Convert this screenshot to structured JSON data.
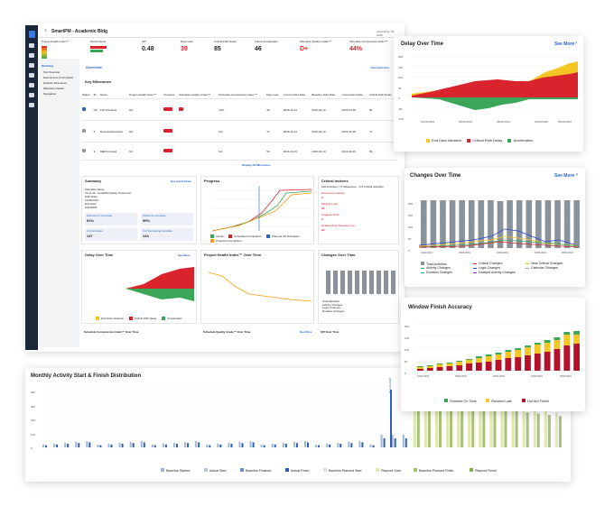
{
  "app": {
    "title": "SmartPM - Academic Bldg",
    "user": "Somebody, Sb 1026",
    "metrics": [
      {
        "label": "Project Health Index™",
        "value": ""
      },
      {
        "label": "Performance",
        "value": ""
      },
      {
        "label": "SPI",
        "value": "0.48"
      },
      {
        "label": "Days Late",
        "value": "39"
      },
      {
        "label": "Critical Path Delay",
        "value": "85"
      },
      {
        "label": "Future Acceleration",
        "value": "46"
      },
      {
        "label": "Schedule Quality Grade™",
        "value": "D+"
      },
      {
        "label": "Schedule Compression Index™",
        "value": "44%"
      }
    ],
    "sidebar_menu": [
      "Modeling",
      "Test Scenario",
      "Experiments & Complete",
      "Network Resources",
      "Milestone Details",
      "Navigation"
    ],
    "overview_link": "Overview",
    "view_summary": "View Summary",
    "key_milestones": {
      "title": "Key Milestones",
      "columns": [
        "Status",
        "ID",
        "Name",
        "Project Health Index™",
        "Progress",
        "Schedule Quality Grade™",
        "Schedule Compression Index™",
        "Days Late",
        "Current Start Date",
        "Baseline Start Date",
        "Current End Date",
        "Critical Path Delay",
        "Future Acceleration"
      ],
      "rows": [
        {
          "id": "NA",
          "name": "Full Schedule",
          "phi": "NA",
          "sci": "44%",
          "days": "39",
          "cur_start": "2016-11-03",
          "base_start": "2016-02-10",
          "cur_end": "2016-04-26",
          "cpd": "85"
        },
        {
          "id": "5",
          "name": "Roundo Relocated",
          "phi": "NA",
          "sci": "NA",
          "days": "71",
          "cur_start": "2016-11-03",
          "base_start": "2016-02-10",
          "cur_end": "2016-02-26",
          "cpd": "71"
        },
        {
          "id": "9",
          "name": "MEN's issued",
          "phi": "NA",
          "sci": "NA",
          "days": "59",
          "cur_start": "2016-11-03",
          "base_start": "2016-02-10",
          "cur_end": "2016-02-26",
          "cpd": "59"
        }
      ],
      "display_all": "Display All Milestones"
    },
    "summary_panel": {
      "title": "Summary",
      "link": "See Gantt Chart",
      "rows": [
        {
          "label": "Schedule Name",
          "value": "76.11.43 - SmartPM (Delay Protect.ion"
        },
        {
          "label": "Start Date",
          "value": "11/02/2016"
        },
        {
          "label": "End Date",
          "value": "4/22/2018"
        },
        {
          "label": "Planned % Complete",
          "value": "91%"
        },
        {
          "label": "Actual % Complete",
          "value": "50%"
        },
        {
          "label": "# of Activities",
          "value": "147"
        },
        {
          "label": "# of Remaining Activities",
          "value": "143"
        }
      ]
    },
    "progress_panel": {
      "title": "Progress",
      "legend": [
        "Actual",
        "Scheduled Completion",
        "Planned (Of Schedule)",
        "Projected Completion"
      ]
    },
    "critical_panel": {
      "title": "Critical Indexes",
      "subtitle": "136 Activities / 71 Milestones · 173 Critical Activities",
      "items": [
        {
          "label": "Resources Loaded",
          "value": "0"
        },
        {
          "label": "Missing Logic",
          "value": "20"
        },
        {
          "label": "Negative Float",
          "value": "0"
        },
        {
          "label": "Relationships Negative Lag",
          "value": "24"
        }
      ]
    },
    "delay_small": {
      "title": "Delay Over Time",
      "link": "See More",
      "legend": [
        "End Date Variance",
        "Critical Path Delay",
        "Acceleration"
      ]
    },
    "phi_small": {
      "title": "Project Health Index™ Over Time"
    },
    "changes_small": {
      "title": "Changes Over Time",
      "legend": [
        "Total Activities",
        "Critical Changes",
        "Near Critical Changes",
        "Activity Changes",
        "Logic Changes",
        "Calendar Changes",
        "Duration Changes",
        "Delayed Activity Changes"
      ]
    },
    "bottom_titles": [
      "Schedule Compression Index™ Over Time",
      "Schedule Quality Grade™ Over Time",
      "SPI Over Time"
    ],
    "bottom_link": "See More"
  },
  "delay_card": {
    "title": "Delay Over Time",
    "link": "See More",
    "yticks": [
      "200",
      "150",
      "100",
      "50",
      "0",
      "-50",
      "-100"
    ],
    "xticks": [
      "01/01/2019",
      "03/01/2019",
      "05/01/2019",
      "07/01/2019",
      "09/01/2019",
      "11/01/2019",
      "01/01/2020",
      "03/01/2020",
      "05/01/2020"
    ],
    "legend": [
      "End Date Variance",
      "Critical Path Delay",
      "Acceleration"
    ],
    "colors": {
      "variance": "#f3c623",
      "critical": "#d9232d",
      "accel": "#3aa657"
    }
  },
  "changes_card": {
    "title": "Changes Over Time",
    "link": "See More",
    "yticks": [
      "200",
      "150",
      "100",
      "50",
      "0"
    ],
    "xticks": [
      "01/01/2019",
      "02/01/2019",
      "03/01/2019",
      "04/01/2019",
      "05/01/2019",
      "06/01/2019",
      "07/01/2019",
      "08/01/2019",
      "09/01/2019",
      "10/01/2019",
      "11/01/2019",
      "12/01/2019",
      "01/01/2020",
      "02/01/2020",
      "03/01/2020",
      "04/01/2020",
      "05/01/2020"
    ],
    "bars": [
      205,
      205,
      205,
      205,
      205,
      205,
      205,
      205,
      200,
      205,
      205,
      205,
      205,
      205,
      205,
      205,
      215
    ],
    "legend": [
      {
        "label": "Total Activities",
        "color": "#8a929b"
      },
      {
        "label": "Critical Changes",
        "color": "#d9232d"
      },
      {
        "label": "Near Critical Changes",
        "color": "#f3c623"
      },
      {
        "label": "Activity Changes",
        "color": "#3aa657"
      },
      {
        "label": "Logic Changes",
        "color": "#2a3fd1"
      },
      {
        "label": "Calendar Changes",
        "color": "#6ea8e6"
      },
      {
        "label": "Duration Changes",
        "color": "#1ea0a0"
      },
      {
        "label": "Delayed Activity Changes",
        "color": "#9b3fbf"
      }
    ]
  },
  "window_card": {
    "title": "Window Finish Accuracy",
    "yticks": [
      "200",
      "150",
      "100",
      "50",
      "0"
    ],
    "xticks": [
      "01/01/2019",
      "02/01/2019",
      "03/01/2019",
      "04/01/2019",
      "05/01/2019",
      "06/01/2019",
      "07/01/2019",
      "08/01/2019",
      "09/01/2019",
      "10/01/2019",
      "11/01/2019",
      "12/01/2019",
      "01/01/2020",
      "02/01/2020",
      "03/01/2020",
      "04/01/2020",
      "05/01/2020"
    ],
    "legend": [
      {
        "label": "Finished On Time",
        "color": "#3aa657"
      },
      {
        "label": "Finished Late",
        "color": "#f3c623"
      },
      {
        "label": "Did Not Finish",
        "color": "#b3122a"
      }
    ]
  },
  "monthly_card": {
    "title": "Monthly Activity Start & Finish Distribution",
    "yticks": [
      "400",
      "300",
      "200",
      "100",
      "0"
    ],
    "today_label": "02-Feb-2020",
    "legend": [
      {
        "label": "Baseline Started",
        "color": "#9fb6d6"
      },
      {
        "label": "Actual Start",
        "color": "#b9c7dd"
      },
      {
        "label": "Baseline Finished",
        "color": "#6b8fc9"
      },
      {
        "label": "Actual Finish",
        "color": "#2f5fb5"
      },
      {
        "label": "Baseline Planned Start",
        "color": "#d6dfeb"
      },
      {
        "label": "Planned Start",
        "color": "#dfe8b0"
      },
      {
        "label": "Baseline Planned Finish",
        "color": "#a8c07a"
      },
      {
        "label": "Planned Finish",
        "color": "#7fae4e"
      }
    ]
  }
}
